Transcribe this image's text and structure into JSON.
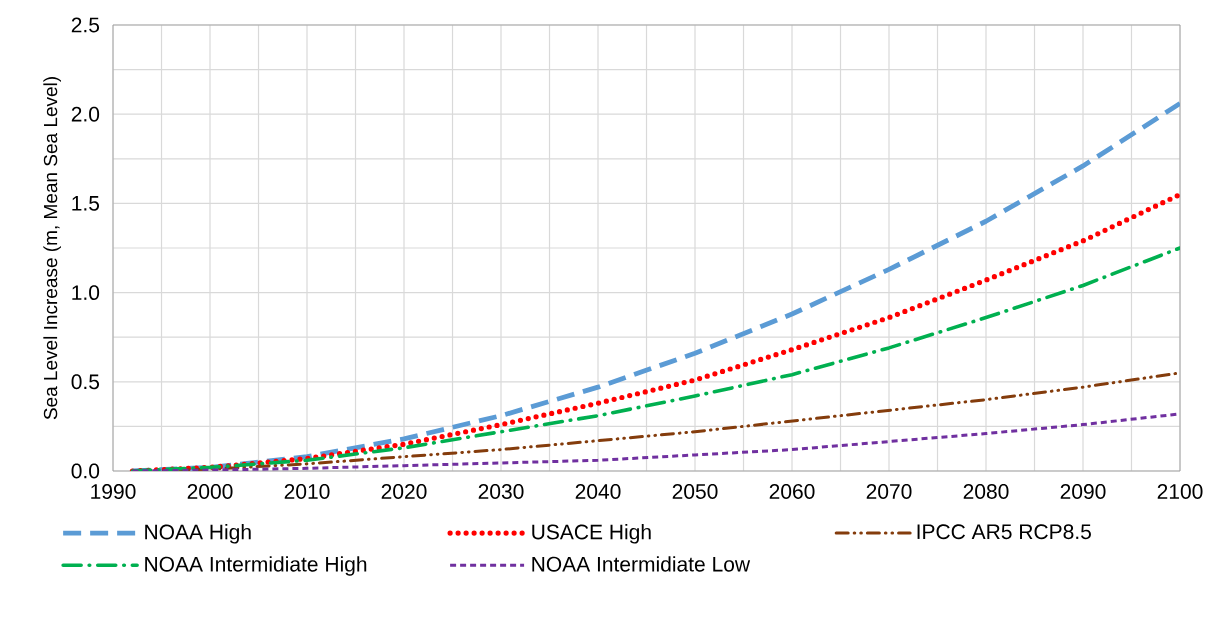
{
  "chart_data": {
    "type": "line",
    "ylabel": "Sea Level Increase (m, Mean Sea Level)",
    "x": [
      1992,
      2000,
      2010,
      2020,
      2030,
      2040,
      2050,
      2060,
      2070,
      2080,
      2090,
      2100
    ],
    "xlim": [
      1990,
      2100
    ],
    "xticks": [
      1990,
      2000,
      2010,
      2020,
      2030,
      2040,
      2050,
      2060,
      2070,
      2080,
      2090,
      2100
    ],
    "ylim": [
      0,
      2.5
    ],
    "yticks": [
      {
        "value": 0,
        "label": "0.0"
      },
      {
        "value": 0.5,
        "label": "0.5"
      },
      {
        "value": 1,
        "label": "1.0"
      },
      {
        "value": 1.5,
        "label": "1.5"
      },
      {
        "value": 2,
        "label": "2.0"
      },
      {
        "value": 2.5,
        "label": "2.5"
      }
    ],
    "grid": true,
    "legend": "bottom",
    "marker": "none",
    "series": [
      {
        "name": "NOAA High",
        "color": "#5b9bd5",
        "line_style": "dashed",
        "values": [
          0,
          0.02,
          0.08,
          0.18,
          0.31,
          0.47,
          0.66,
          0.88,
          1.13,
          1.4,
          1.71,
          2.06
        ]
      },
      {
        "name": "USACE High",
        "color": "#ff0000",
        "line_style": "dotted",
        "values": [
          0,
          0.02,
          0.07,
          0.15,
          0.26,
          0.38,
          0.51,
          0.68,
          0.86,
          1.07,
          1.29,
          1.55
        ]
      },
      {
        "name": "IPCC AR5 RCP8.5",
        "color": "#843c0c",
        "line_style": "dashdotdot",
        "values": [
          0,
          0.01,
          0.04,
          0.08,
          0.12,
          0.17,
          0.22,
          0.28,
          0.34,
          0.4,
          0.47,
          0.55
        ]
      },
      {
        "name": "NOAA Intermidiate High",
        "color": "#00b050",
        "line_style": "dashdot",
        "values": [
          0,
          0.02,
          0.06,
          0.13,
          0.22,
          0.31,
          0.42,
          0.54,
          0.69,
          0.86,
          1.04,
          1.25
        ]
      },
      {
        "name": "NOAA Intermidiate Low",
        "color": "#7030a0",
        "line_style": "dashed_fine",
        "values": [
          0,
          0.005,
          0.015,
          0.03,
          0.045,
          0.06,
          0.09,
          0.12,
          0.165,
          0.21,
          0.26,
          0.32
        ]
      }
    ]
  }
}
